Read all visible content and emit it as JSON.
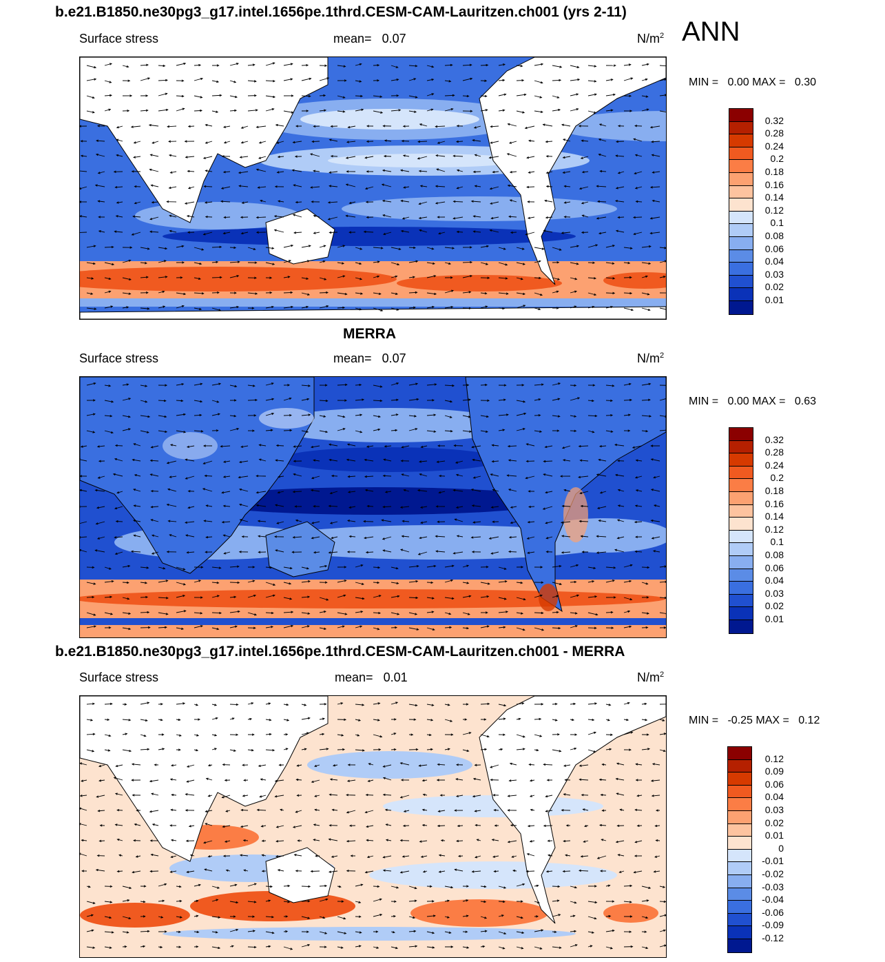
{
  "season": "ANN",
  "panels": [
    {
      "title": "b.e21.B1850.ne30pg3_g17.intel.1656pe.1thrd.CESM-CAM-Lauritzen.ch001 (yrs 2-11)",
      "variable": "Surface stress",
      "mean_label": "mean=",
      "mean_value": "0.07",
      "units": "N/m",
      "units_exp": "2",
      "min_label": "MIN =",
      "min_value": "0.00",
      "max_label": "MAX =",
      "max_value": "0.30",
      "colorbar": {
        "labels": [
          "0.32",
          "0.28",
          "0.24",
          "0.2",
          "0.18",
          "0.16",
          "0.14",
          "0.12",
          "0.1",
          "0.08",
          "0.06",
          "0.04",
          "0.03",
          "0.02",
          "0.01"
        ],
        "colors": [
          "#8b0000",
          "#b52000",
          "#d63a00",
          "#f05a20",
          "#fb7d45",
          "#fca171",
          "#fdc39f",
          "#fde3cf",
          "#d5e5fb",
          "#b0ccf7",
          "#88aef0",
          "#5b8ce6",
          "#3a6fe0",
          "#2050d0",
          "#0a32b8",
          "#001890"
        ]
      }
    },
    {
      "title": "MERRA",
      "variable": "Surface stress",
      "mean_label": "mean=",
      "mean_value": "0.07",
      "units": "N/m",
      "units_exp": "2",
      "min_label": "MIN =",
      "min_value": "0.00",
      "max_label": "MAX =",
      "max_value": "0.63",
      "colorbar": {
        "labels": [
          "0.32",
          "0.28",
          "0.24",
          "0.2",
          "0.18",
          "0.16",
          "0.14",
          "0.12",
          "0.1",
          "0.08",
          "0.06",
          "0.04",
          "0.03",
          "0.02",
          "0.01"
        ],
        "colors": [
          "#8b0000",
          "#b52000",
          "#d63a00",
          "#f05a20",
          "#fb7d45",
          "#fca171",
          "#fdc39f",
          "#fde3cf",
          "#d5e5fb",
          "#b0ccf7",
          "#88aef0",
          "#5b8ce6",
          "#3a6fe0",
          "#2050d0",
          "#0a32b8",
          "#001890"
        ]
      }
    },
    {
      "title": "b.e21.B1850.ne30pg3_g17.intel.1656pe.1thrd.CESM-CAM-Lauritzen.ch001 - MERRA",
      "variable": "Surface stress",
      "mean_label": "mean=",
      "mean_value": "0.01",
      "units": "N/m",
      "units_exp": "2",
      "min_label": "MIN =",
      "min_value": "-0.25",
      "max_label": "MAX =",
      "max_value": "0.12",
      "colorbar": {
        "labels": [
          "0.12",
          "0.09",
          "0.06",
          "0.04",
          "0.03",
          "0.02",
          "0.01",
          "0",
          "-0.01",
          "-0.02",
          "-0.03",
          "-0.04",
          "-0.06",
          "-0.09",
          "-0.12"
        ],
        "colors": [
          "#8b0000",
          "#b52000",
          "#d63a00",
          "#f05a20",
          "#fb7d45",
          "#fca171",
          "#fdc39f",
          "#fde3cf",
          "#d5e5fb",
          "#b0ccf7",
          "#88aef0",
          "#5b8ce6",
          "#3a6fe0",
          "#2050d0",
          "#0a32b8",
          "#001890"
        ]
      }
    }
  ]
}
